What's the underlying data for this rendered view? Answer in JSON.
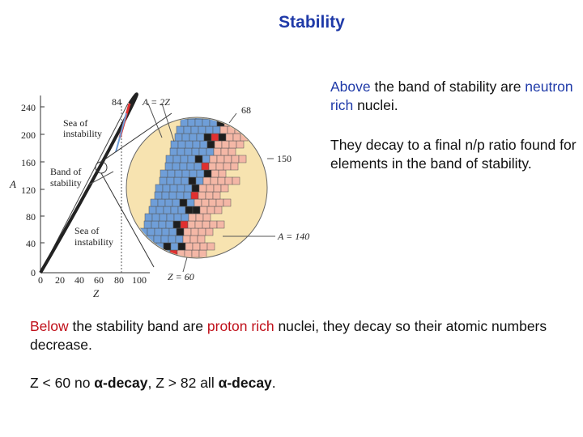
{
  "title": "Stability",
  "above": {
    "p1": "Above",
    "p2": " the band of stability are ",
    "p3": "neutron rich",
    "p4": " nuclei."
  },
  "decay_text": "They decay to a final n/p ratio found for elements in the band of stability.",
  "below": {
    "p1": "Below",
    "p2": " the stability band are ",
    "p3": "proton rich",
    "p4": " nuclei, they decay so their atomic numbers decrease."
  },
  "alpha": {
    "p1": "Z < 60 no ",
    "p2": "α-decay",
    "p3": ",  Z > 82 all ",
    "p4": "α-decay",
    "p5": "."
  },
  "figure": {
    "y_axis_label": "A",
    "x_axis_label": "Z",
    "y_ticks": [
      "0",
      "40",
      "80",
      "120",
      "160",
      "200",
      "240"
    ],
    "x_ticks": [
      "0",
      "20",
      "40",
      "60",
      "80",
      "100"
    ],
    "sea_top": [
      "Sea of",
      "instability"
    ],
    "sea_bottom": [
      "Sea of",
      "instability"
    ],
    "band": [
      "Band of",
      "stability"
    ],
    "label_84": "84",
    "label_a2z": "A = 2Z",
    "label_68": "68",
    "label_150": "150",
    "label_a140": "A = 140",
    "label_z60": "Z = 60"
  },
  "colors": {
    "title": "#1f3aa8",
    "blue_text": "#1f3aa8",
    "red_text": "#c0101a",
    "circle_fill": "#f7e3b0",
    "stable_square": "#6f9ed8",
    "beta_plus_square": "#f4b7a6",
    "beta_minus_square": "#1e1e1e",
    "red_square": "#e03030"
  }
}
